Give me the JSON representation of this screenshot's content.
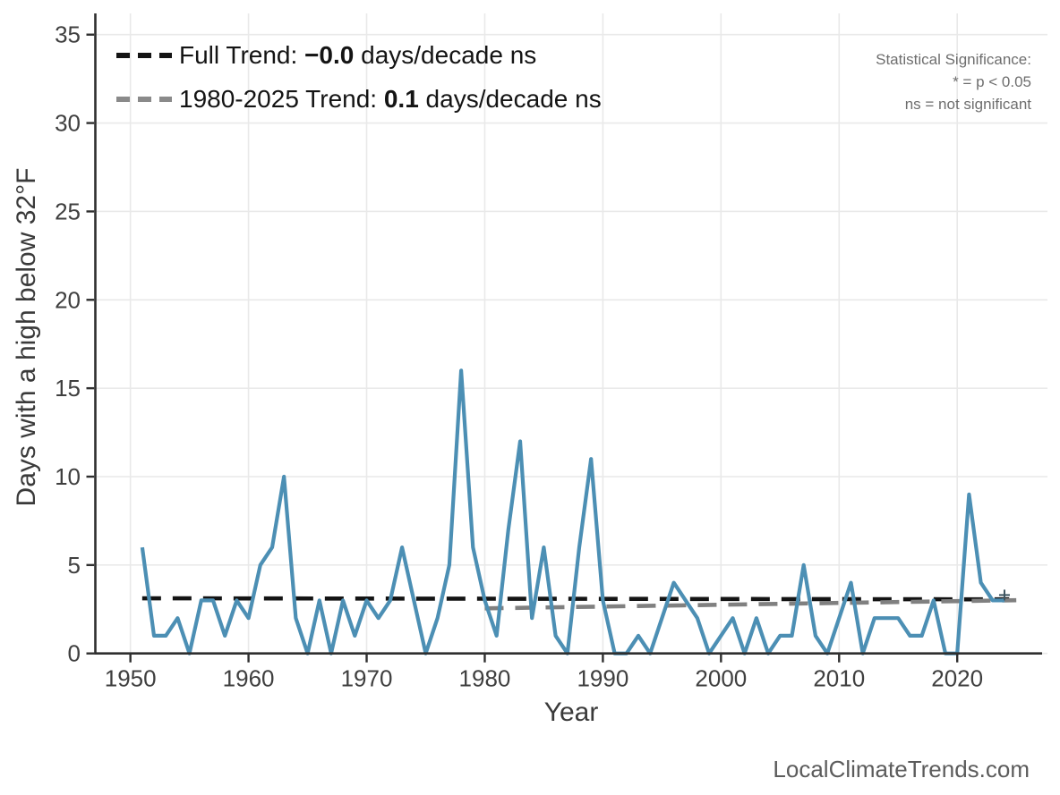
{
  "watermark": "LocalClimateTrends.com",
  "legend": {
    "entries": [
      {
        "prefix": "Full Trend: ",
        "value": "−0.0",
        "suffix": " days/decade ns",
        "color": "#141414"
      },
      {
        "prefix": "1980-2025 Trend: ",
        "value": "0.1",
        "suffix": " days/decade ns",
        "color": "#8a8a8a"
      }
    ]
  },
  "significance_note": {
    "lines": [
      "Statistical Significance:",
      "* = p < 0.05",
      "ns = not significant"
    ]
  },
  "chart_data": {
    "type": "line",
    "title": "",
    "xlabel": "Year",
    "ylabel": "Days with a high below 32°F",
    "x": [
      1951,
      1952,
      1953,
      1954,
      1955,
      1956,
      1957,
      1958,
      1959,
      1960,
      1961,
      1962,
      1963,
      1964,
      1965,
      1966,
      1967,
      1968,
      1969,
      1970,
      1971,
      1972,
      1973,
      1974,
      1975,
      1976,
      1977,
      1978,
      1979,
      1980,
      1981,
      1982,
      1983,
      1984,
      1985,
      1986,
      1987,
      1988,
      1989,
      1990,
      1991,
      1992,
      1993,
      1994,
      1995,
      1996,
      1997,
      1998,
      1999,
      2000,
      2001,
      2002,
      2003,
      2004,
      2005,
      2006,
      2007,
      2008,
      2009,
      2010,
      2011,
      2012,
      2013,
      2014,
      2015,
      2016,
      2017,
      2018,
      2019,
      2020,
      2021,
      2022,
      2023,
      2024
    ],
    "values": [
      6,
      1,
      1,
      2,
      0,
      3,
      3,
      1,
      3,
      2,
      5,
      6,
      10,
      2,
      0,
      3,
      0,
      3,
      1,
      3,
      2,
      3,
      6,
      3,
      0,
      2,
      5,
      16,
      6,
      3,
      1,
      7,
      12,
      2,
      6,
      1,
      0,
      6,
      11,
      3,
      0,
      0,
      1,
      0,
      2,
      4,
      3,
      2,
      0,
      1,
      2,
      0,
      2,
      0,
      1,
      1,
      5,
      1,
      0,
      2,
      4,
      0,
      2,
      2,
      2,
      1,
      1,
      3,
      0,
      0,
      9,
      4,
      3,
      3
    ],
    "series_color": "#4c8fb4",
    "xlim": [
      1947.07,
      2027.64
    ],
    "ylim": [
      0,
      36.2
    ],
    "xticks": [
      1950,
      1960,
      1970,
      1980,
      1990,
      2000,
      2010,
      2020
    ],
    "yticks": [
      0,
      5,
      10,
      15,
      20,
      25,
      30,
      35
    ],
    "grid": true,
    "legend_position": "top-left",
    "trend_lines": [
      {
        "name": "full-trend",
        "x1": 1951,
        "v1": 3.12,
        "x2": 2024.4,
        "v2": 3.06,
        "color": "#141414",
        "dash": [
          21,
          13
        ]
      },
      {
        "name": "1980-2025-trend",
        "x1": 1980,
        "v1": 2.55,
        "x2": 2025,
        "v2": 3.01,
        "color": "#808080",
        "dash": [
          21,
          13
        ]
      }
    ],
    "end_marker": {
      "x": 2024,
      "v": 3
    }
  }
}
